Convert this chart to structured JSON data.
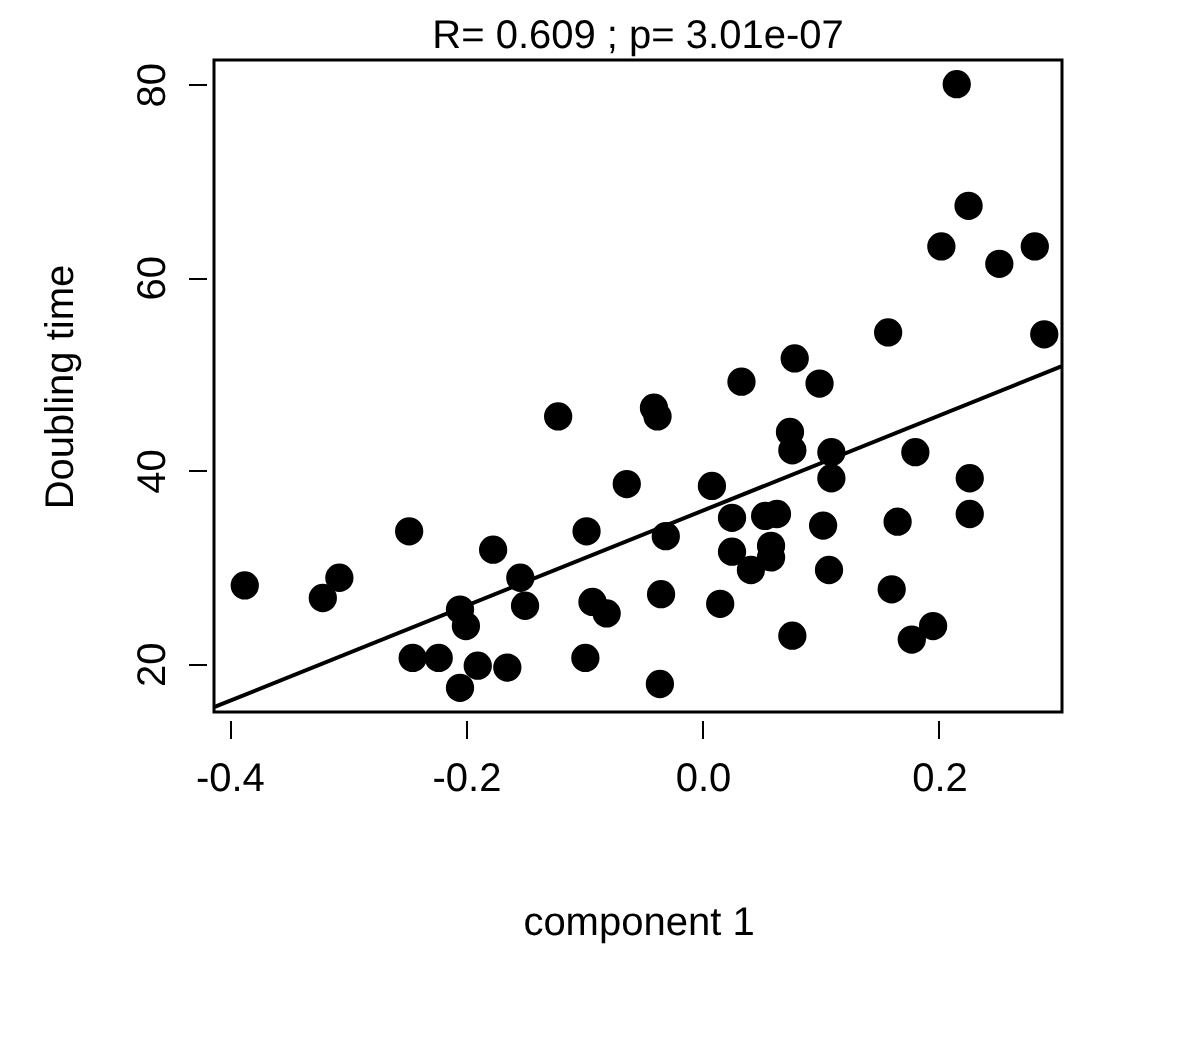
{
  "chart_data": {
    "type": "scatter",
    "title": "R= 0.609 ; p= 3.01e-07",
    "xlabel": "component 1",
    "ylabel": "Doubling time",
    "xlim": [
      -0.413,
      0.304
    ],
    "ylim": [
      15.0,
      82.5
    ],
    "xticks": [
      {
        "value": -0.4,
        "label": "-0.4"
      },
      {
        "value": -0.2,
        "label": "-0.2"
      },
      {
        "value": 0,
        "label": "0.0"
      },
      {
        "value": 0.2,
        "label": "0.2"
      }
    ],
    "yticks": [
      20,
      40,
      60,
      80
    ],
    "grid": false,
    "marker": "circle",
    "series": [
      {
        "color": "#000000",
        "x": [
          -0.387,
          -0.321,
          -0.307,
          -0.248,
          -0.245,
          -0.223,
          -0.205,
          -0.19,
          -0.165,
          -0.205,
          -0.2,
          -0.154,
          -0.15,
          -0.177,
          -0.122,
          -0.098,
          -0.093,
          -0.081,
          -0.099,
          -0.064,
          0.215,
          0.225,
          0.202,
          0.251,
          0.281,
          0.157,
          0.289,
          0.078,
          0.099,
          0.033,
          -0.041,
          -0.038,
          0.074,
          0.076,
          0.109,
          0.109,
          0.18,
          0.226,
          0.226,
          0.008,
          0.025,
          0.063,
          0.053,
          0.102,
          0.165,
          -0.031,
          0.058,
          0.058,
          0.025,
          0.041,
          0.107,
          -0.035,
          0.015,
          0.16,
          0.076,
          0.177,
          0.195,
          -0.036
        ],
        "values": [
          28.1,
          26.8,
          28.9,
          33.7,
          20.6,
          20.6,
          17.5,
          19.8,
          19.6,
          25.6,
          23.9,
          28.9,
          26.0,
          31.8,
          45.6,
          33.7,
          26.4,
          25.2,
          20.6,
          38.6,
          80.0,
          67.4,
          63.2,
          61.4,
          63.2,
          54.3,
          54.1,
          51.6,
          49.0,
          49.2,
          46.5,
          45.6,
          44.0,
          42.1,
          41.9,
          39.2,
          41.9,
          39.2,
          35.5,
          38.4,
          35.1,
          35.5,
          35.3,
          34.3,
          34.7,
          33.2,
          32.2,
          31.0,
          31.6,
          29.7,
          29.7,
          27.2,
          26.2,
          27.7,
          22.9,
          22.5,
          23.9,
          17.9
        ]
      },
      {
        "type": "line",
        "color": "#000000",
        "line_style": "solid",
        "marker": "none",
        "x": [
          -0.413,
          0.304
        ],
        "values": [
          15.5,
          50.8
        ]
      }
    ]
  }
}
